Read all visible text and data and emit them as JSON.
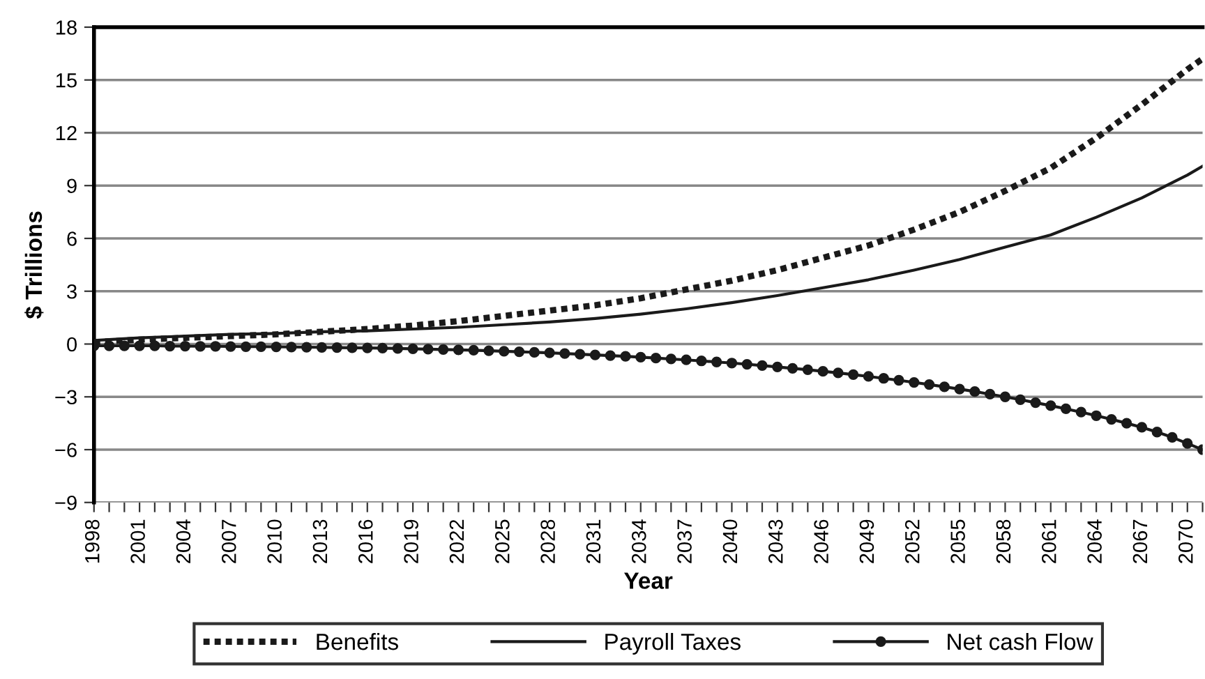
{
  "chart_data": {
    "type": "line",
    "xlabel": "Year",
    "ylabel": "$ Trillions",
    "xlim": [
      1998,
      2071
    ],
    "ylim": [
      -9,
      18
    ],
    "yticks": [
      {
        "value": -9,
        "label": "−9"
      },
      {
        "value": -6,
        "label": "−6"
      },
      {
        "value": -3,
        "label": "−3"
      },
      0,
      3,
      6,
      9,
      12,
      15,
      18
    ],
    "xticks": [
      1998,
      {
        "value": 1999,
        "label": null
      },
      {
        "value": 2000,
        "label": null
      },
      2001,
      {
        "value": 2002,
        "label": null
      },
      {
        "value": 2003,
        "label": null
      },
      2004,
      {
        "value": 2005,
        "label": null
      },
      {
        "value": 2006,
        "label": null
      },
      2007,
      {
        "value": 2008,
        "label": null
      },
      {
        "value": 2009,
        "label": null
      },
      2010,
      {
        "value": 2011,
        "label": null
      },
      {
        "value": 2012,
        "label": null
      },
      2013,
      {
        "value": 2014,
        "label": null
      },
      {
        "value": 2015,
        "label": null
      },
      2016,
      {
        "value": 2017,
        "label": null
      },
      {
        "value": 2018,
        "label": null
      },
      2019,
      {
        "value": 2020,
        "label": null
      },
      {
        "value": 2021,
        "label": null
      },
      2022,
      {
        "value": 2023,
        "label": null
      },
      {
        "value": 2024,
        "label": null
      },
      2025,
      {
        "value": 2026,
        "label": null
      },
      {
        "value": 2027,
        "label": null
      },
      2028,
      {
        "value": 2029,
        "label": null
      },
      {
        "value": 2030,
        "label": null
      },
      2031,
      {
        "value": 2032,
        "label": null
      },
      {
        "value": 2033,
        "label": null
      },
      2034,
      {
        "value": 2035,
        "label": null
      },
      {
        "value": 2036,
        "label": null
      },
      2037,
      {
        "value": 2038,
        "label": null
      },
      {
        "value": 2039,
        "label": null
      },
      2040,
      {
        "value": 2041,
        "label": null
      },
      {
        "value": 2042,
        "label": null
      },
      2043,
      {
        "value": 2044,
        "label": null
      },
      {
        "value": 2045,
        "label": null
      },
      2046,
      {
        "value": 2047,
        "label": null
      },
      {
        "value": 2048,
        "label": null
      },
      2049,
      {
        "value": 2050,
        "label": null
      },
      {
        "value": 2051,
        "label": null
      },
      2052,
      {
        "value": 2053,
        "label": null
      },
      {
        "value": 2054,
        "label": null
      },
      2055,
      {
        "value": 2056,
        "label": null
      },
      {
        "value": 2057,
        "label": null
      },
      2058,
      {
        "value": 2059,
        "label": null
      },
      {
        "value": 2060,
        "label": null
      },
      2061,
      {
        "value": 2062,
        "label": null
      },
      {
        "value": 2063,
        "label": null
      },
      2064,
      {
        "value": 2065,
        "label": null
      },
      {
        "value": 2066,
        "label": null
      },
      2067,
      {
        "value": 2068,
        "label": null
      },
      {
        "value": 2069,
        "label": null
      },
      2070,
      {
        "value": 2071,
        "label": null
      }
    ],
    "grid": "y",
    "legend": "bottom",
    "series": [
      {
        "name": "Benefits",
        "color": "#1a1a1a",
        "line_style": "dotted",
        "marker": "none",
        "x": [
          1998,
          2001,
          2004,
          2007,
          2010,
          2013,
          2016,
          2019,
          2022,
          2025,
          2028,
          2031,
          2034,
          2037,
          2040,
          2043,
          2046,
          2049,
          2052,
          2055,
          2058,
          2061,
          2064,
          2067,
          2070,
          2071
        ],
        "values": [
          0.1,
          0.25,
          0.35,
          0.45,
          0.55,
          0.7,
          0.85,
          1.05,
          1.3,
          1.6,
          1.9,
          2.2,
          2.6,
          3.1,
          3.6,
          4.2,
          4.9,
          5.6,
          6.5,
          7.5,
          8.7,
          10.0,
          11.7,
          13.6,
          15.6,
          16.2
        ]
      },
      {
        "name": "Payroll Taxes",
        "color": "#1a1a1a",
        "line_style": "solid",
        "marker": "none",
        "x": [
          1998,
          2001,
          2004,
          2007,
          2010,
          2013,
          2016,
          2019,
          2022,
          2025,
          2028,
          2031,
          2034,
          2037,
          2040,
          2043,
          2046,
          2049,
          2052,
          2055,
          2058,
          2061,
          2064,
          2067,
          2070,
          2071
        ],
        "values": [
          0.2,
          0.35,
          0.45,
          0.55,
          0.6,
          0.7,
          0.75,
          0.85,
          0.95,
          1.1,
          1.25,
          1.45,
          1.7,
          2.0,
          2.35,
          2.75,
          3.2,
          3.65,
          4.2,
          4.8,
          5.5,
          6.2,
          7.2,
          8.3,
          9.6,
          10.1
        ]
      },
      {
        "name": "Net cash Flow",
        "color": "#1a1a1a",
        "line_style": "solid",
        "marker": "circle",
        "x": [
          1998,
          1999,
          2000,
          2001,
          2002,
          2003,
          2004,
          2005,
          2006,
          2007,
          2008,
          2009,
          2010,
          2011,
          2012,
          2013,
          2014,
          2015,
          2016,
          2017,
          2018,
          2019,
          2020,
          2021,
          2022,
          2023,
          2024,
          2025,
          2026,
          2027,
          2028,
          2029,
          2030,
          2031,
          2032,
          2033,
          2034,
          2035,
          2036,
          2037,
          2038,
          2039,
          2040,
          2041,
          2042,
          2043,
          2044,
          2045,
          2046,
          2047,
          2048,
          2049,
          2050,
          2051,
          2052,
          2053,
          2054,
          2055,
          2056,
          2057,
          2058,
          2059,
          2060,
          2061,
          2062,
          2063,
          2064,
          2065,
          2066,
          2067,
          2068,
          2069,
          2070,
          2071
        ],
        "values": [
          -0.1,
          -0.1,
          -0.1,
          -0.1,
          -0.1,
          -0.12,
          -0.12,
          -0.13,
          -0.13,
          -0.14,
          -0.15,
          -0.15,
          -0.16,
          -0.17,
          -0.18,
          -0.19,
          -0.2,
          -0.21,
          -0.22,
          -0.23,
          -0.25,
          -0.27,
          -0.29,
          -0.31,
          -0.33,
          -0.35,
          -0.38,
          -0.41,
          -0.44,
          -0.47,
          -0.5,
          -0.54,
          -0.58,
          -0.62,
          -0.66,
          -0.7,
          -0.75,
          -0.8,
          -0.85,
          -0.9,
          -0.96,
          -1.02,
          -1.08,
          -1.15,
          -1.22,
          -1.3,
          -1.38,
          -1.46,
          -1.55,
          -1.64,
          -1.74,
          -1.84,
          -1.95,
          -2.06,
          -2.18,
          -2.3,
          -2.43,
          -2.56,
          -2.7,
          -2.85,
          -3.0,
          -3.16,
          -3.33,
          -3.5,
          -3.68,
          -3.87,
          -4.07,
          -4.28,
          -4.5,
          -4.73,
          -5.0,
          -5.3,
          -5.65,
          -6.0
        ]
      }
    ]
  }
}
